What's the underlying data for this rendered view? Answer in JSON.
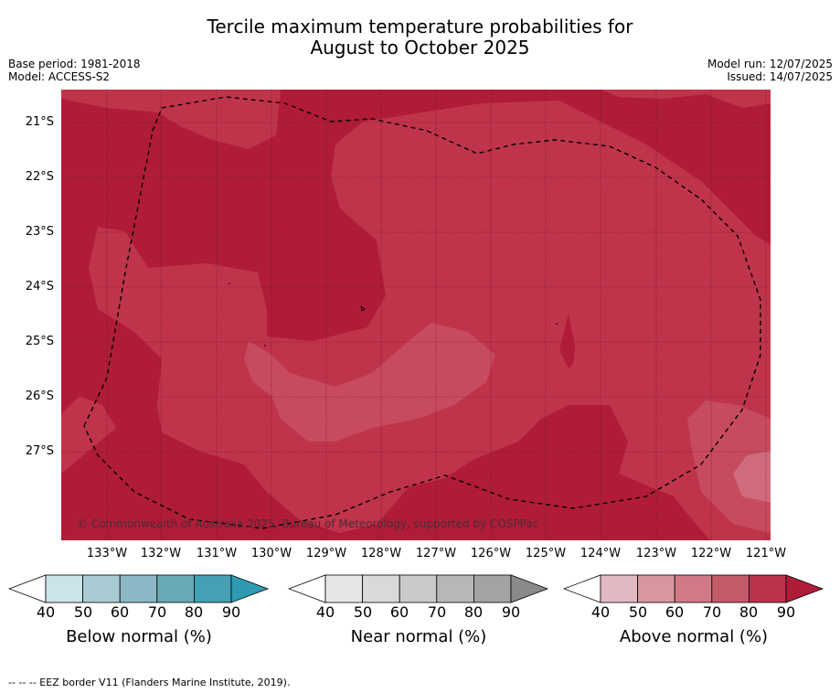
{
  "title_line1": "Tercile maximum temperature probabilities for",
  "title_line2": "August to October 2025",
  "meta_left": [
    "Base period: 1981-2018",
    "Model: ACCESS-S2"
  ],
  "meta_right": [
    "Model run: 12/07/2025",
    "Issued: 14/07/2025"
  ],
  "map": {
    "lat_labels": [
      "21°S",
      "22°S",
      "23°S",
      "24°S",
      "25°S",
      "26°S",
      "27°S"
    ],
    "lon_labels": [
      "133°W",
      "132°W",
      "131°W",
      "130°W",
      "129°W",
      "128°W",
      "127°W",
      "126°W",
      "125°W",
      "124°W",
      "123°W",
      "122°W",
      "121°W"
    ],
    "copyright": "© Commonwealth of Australia 2025, Bureau of Meteorology, supported by COSPPac",
    "colors": {
      "above_80": "#b01c38",
      "above_70": "#c0364d",
      "above_60": "#cf6b7c",
      "near_40": "#e2e2e2"
    }
  },
  "colorbars": [
    {
      "label": "Below normal (%)",
      "ticks": [
        "40",
        "50",
        "60",
        "70",
        "80",
        "90"
      ],
      "colors": [
        "#ffffff",
        "#cce3e9",
        "#a9cbd3",
        "#8bb8c4",
        "#6aa9b7",
        "#45a0b3",
        "#2e9bb2"
      ]
    },
    {
      "label": "Near normal (%)",
      "ticks": [
        "40",
        "50",
        "60",
        "70",
        "80",
        "90"
      ],
      "colors": [
        "#ffffff",
        "#e6e6e6",
        "#d9d9d9",
        "#cacaca",
        "#b7b7b7",
        "#a3a3a3",
        "#8a8a8a"
      ]
    },
    {
      "label": "Above normal (%)",
      "ticks": [
        "40",
        "50",
        "60",
        "70",
        "80",
        "90"
      ],
      "colors": [
        "#ffffff",
        "#e3b9c1",
        "#d8969f",
        "#cf7a84",
        "#c45b6b",
        "#b9334b",
        "#b01c38"
      ]
    }
  ],
  "footnote": "--  --  -- EEZ border V11 (Flanders Marine Institute, 2019)."
}
